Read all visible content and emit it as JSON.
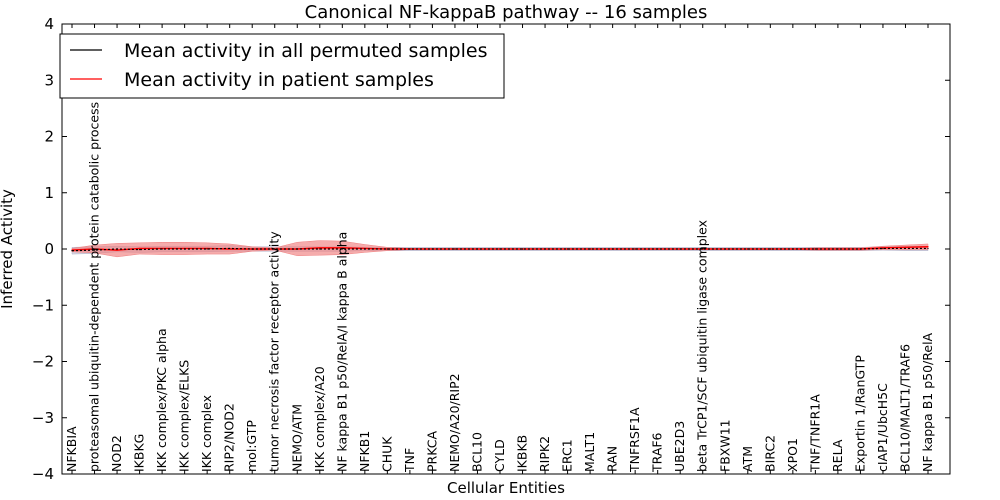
{
  "chart_data": {
    "type": "line",
    "title": "Canonical NF-kappaB pathway -- 16 samples",
    "xlabel": "Cellular Entities",
    "ylabel": "Inferred Activity",
    "ylim": [
      -4,
      4
    ],
    "yticks": [
      4,
      3,
      2,
      1,
      0,
      -1,
      -2,
      -3,
      -4
    ],
    "ytick_labels": [
      "4",
      "3",
      "2",
      "1",
      "0",
      "−1",
      "−2",
      "−3",
      "−4"
    ],
    "categories": [
      "NFKBIA",
      "proteasomal ubiquitin-dependent protein catabolic process",
      "NOD2",
      "IKBKG",
      "IKK complex/PKC alpha",
      "IKK complex/ELKS",
      "IKK complex",
      "RIP2/NOD2",
      "mol:GTP",
      "tumor necrosis factor receptor activity",
      "NEMO/ATM",
      "IKK complex/A20",
      "NF kappa B1 p50/RelA/I kappa B alpha",
      "NFKB1",
      "CHUK",
      "TNF",
      "PRKCA",
      "NEMO/A20/RIP2",
      "BCL10",
      "CYLD",
      "IKBKB",
      "RIPK2",
      "ERC1",
      "MALT1",
      "RAN",
      "TNFRSF1A",
      "TRAF6",
      "UBE2D3",
      "beta TrCP1/SCF ubiquitin ligase complex",
      "FBXW11",
      "ATM",
      "BIRC2",
      "XPO1",
      "TNF/TNFR1A",
      "RELA",
      "Exportin 1/RanGTP",
      "cIAP1/UbcH5C",
      "BCL10/MALT1/TRAF6",
      "NF kappa B1 p50/RelA"
    ],
    "series": [
      {
        "name": "Mean activity in all permuted samples",
        "color": "#000000",
        "band_color": "#b0b0c8",
        "values": [
          -0.03,
          -0.02,
          0.0,
          -0.01,
          0.0,
          0.0,
          0.0,
          0.01,
          0.0,
          0.0,
          0.0,
          0.0,
          0.0,
          0.0,
          0.0,
          0.0,
          0.0,
          0.0,
          0.0,
          0.0,
          0.0,
          0.0,
          0.0,
          0.0,
          0.0,
          0.0,
          0.0,
          0.0,
          0.0,
          0.0,
          0.0,
          0.0,
          0.0,
          0.0,
          0.0,
          0.0,
          0.01,
          0.01,
          0.01
        ],
        "band_halfwidth": [
          0.06,
          0.06,
          0.05,
          0.05,
          0.05,
          0.05,
          0.05,
          0.05,
          0.04,
          0.04,
          0.04,
          0.04,
          0.04,
          0.03,
          0.03,
          0.03,
          0.03,
          0.03,
          0.03,
          0.03,
          0.03,
          0.03,
          0.03,
          0.03,
          0.03,
          0.03,
          0.03,
          0.03,
          0.03,
          0.03,
          0.03,
          0.03,
          0.03,
          0.03,
          0.03,
          0.03,
          0.03,
          0.04,
          0.04
        ]
      },
      {
        "name": "Mean activity in patient samples",
        "color": "#ff0000",
        "band_color": "#f08080",
        "values": [
          -0.02,
          0.0,
          -0.02,
          0.01,
          0.01,
          0.01,
          0.01,
          0.0,
          0.0,
          0.0,
          0.0,
          0.02,
          0.02,
          0.01,
          0.0,
          0.0,
          0.0,
          0.0,
          0.0,
          0.0,
          0.0,
          0.0,
          0.0,
          0.0,
          0.0,
          0.0,
          0.0,
          0.0,
          0.0,
          0.0,
          0.0,
          0.0,
          0.0,
          0.0,
          0.0,
          0.0,
          0.02,
          0.03,
          0.04
        ],
        "band_halfwidth": [
          0.03,
          0.07,
          0.12,
          0.1,
          0.11,
          0.11,
          0.1,
          0.09,
          0.04,
          0.02,
          0.12,
          0.13,
          0.12,
          0.07,
          0.03,
          0.01,
          0.01,
          0.01,
          0.01,
          0.01,
          0.01,
          0.01,
          0.01,
          0.01,
          0.01,
          0.01,
          0.01,
          0.01,
          0.01,
          0.01,
          0.01,
          0.01,
          0.01,
          0.02,
          0.02,
          0.02,
          0.03,
          0.04,
          0.05
        ]
      }
    ],
    "legend": {
      "position": "top-left",
      "entries": [
        "Mean activity in all permuted samples",
        "Mean activity in patient samples"
      ]
    },
    "grid": false
  }
}
